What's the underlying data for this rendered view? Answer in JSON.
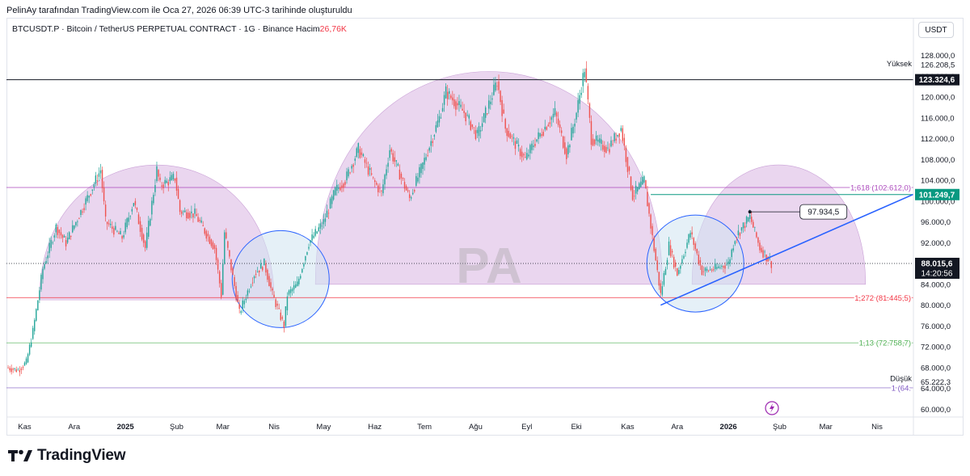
{
  "caption": "PelinAy tarafından TradingView.com ile Oca 27, 2026 06:39 UTC-3 tarihinde oluşturuldu",
  "symbol": {
    "title": "BTCUSDT.P · Bitcoin / TetherUS PERPETUAL CONTRACT · 1G · Binance",
    "volume_label": "Hacim",
    "volume_value": "26,76K"
  },
  "currency_button": "USDT",
  "branding": {
    "logo_text": "TradingView"
  },
  "colors": {
    "up": "#26a69a",
    "down": "#ef5350",
    "fib_purple": "#ab47bc",
    "fib_red": "#f23645",
    "fib_green": "#4caf50",
    "level_green": "#089981",
    "trend_blue": "#2962ff",
    "dome_fill": "#d8b4e2",
    "circle_fill": "#cfe3f0"
  },
  "chart_data": {
    "type": "candlestick",
    "symbol": "BTCUSDT.P",
    "interval": "1G",
    "ylim": [
      58500,
      131500
    ],
    "y_ticks": [
      "128.000,0",
      "124.000,0",
      "120.000,0",
      "116.000,0",
      "112.000,0",
      "108.000,0",
      "104.000,0",
      "100.000,0",
      "96.000,0",
      "92.000,0",
      "88.000,0",
      "84.000,0",
      "80.000,0",
      "76.000,0",
      "72.000,0",
      "68.000,0",
      "64.000,0",
      "60.000,0"
    ],
    "y_tick_values": [
      128000,
      124000,
      120000,
      116000,
      112000,
      108000,
      104000,
      100000,
      96000,
      92000,
      88000,
      84000,
      80000,
      76000,
      72000,
      68000,
      64000,
      60000
    ],
    "x_ticks": [
      "Kas",
      "Ara",
      "2025",
      "Şub",
      "Mar",
      "Nis",
      "May",
      "Haz",
      "Tem",
      "Ağu",
      "Eyl",
      "Eki",
      "Kas",
      "Ara",
      "2026",
      "Şub",
      "Mar",
      "Nis"
    ],
    "x_tick_dates": [
      "2024-11-01",
      "2024-12-01",
      "2025-01-01",
      "2025-02-01",
      "2025-03-01",
      "2025-04-01",
      "2025-05-01",
      "2025-06-01",
      "2025-07-01",
      "2025-08-01",
      "2025-09-01",
      "2025-10-01",
      "2025-11-01",
      "2025-12-01",
      "2026-01-01",
      "2026-02-01",
      "2026-03-01",
      "2026-04-01"
    ],
    "x_tick_bold": [
      "2025",
      "2026"
    ],
    "x_range": [
      "2024-10-21",
      "2026-04-23"
    ],
    "price_path": [
      [
        "2024-10-21",
        68000
      ],
      [
        "2024-10-28",
        67500
      ],
      [
        "2024-11-02",
        69000
      ],
      [
        "2024-11-06",
        75000
      ],
      [
        "2024-11-12",
        87000
      ],
      [
        "2024-11-20",
        95000
      ],
      [
        "2024-11-26",
        92000
      ],
      [
        "2024-12-05",
        98000
      ],
      [
        "2024-12-08",
        100000
      ],
      [
        "2024-12-17",
        106000
      ],
      [
        "2024-12-20",
        96000
      ],
      [
        "2024-12-30",
        93000
      ],
      [
        "2025-01-06",
        100000
      ],
      [
        "2025-01-13",
        91000
      ],
      [
        "2025-01-20",
        106000
      ],
      [
        "2025-01-22",
        103000
      ],
      [
        "2025-01-31",
        104500
      ],
      [
        "2025-02-03",
        98000
      ],
      [
        "2025-02-12",
        97500
      ],
      [
        "2025-02-24",
        91000
      ],
      [
        "2025-02-28",
        82000
      ],
      [
        "2025-03-02",
        94000
      ],
      [
        "2025-03-11",
        78500
      ],
      [
        "2025-03-20",
        86000
      ],
      [
        "2025-03-26",
        88000
      ],
      [
        "2025-03-31",
        82000
      ],
      [
        "2025-04-07",
        76000
      ],
      [
        "2025-04-09",
        82000
      ],
      [
        "2025-04-15",
        84000
      ],
      [
        "2025-04-22",
        92000
      ],
      [
        "2025-05-01",
        96000
      ],
      [
        "2025-05-08",
        102000
      ],
      [
        "2025-05-14",
        104000
      ],
      [
        "2025-05-22",
        110000
      ],
      [
        "2025-05-31",
        104000
      ],
      [
        "2025-06-05",
        101500
      ],
      [
        "2025-06-10",
        110000
      ],
      [
        "2025-06-22",
        100500
      ],
      [
        "2025-06-30",
        107000
      ],
      [
        "2025-07-10",
        116000
      ],
      [
        "2025-07-14",
        121000
      ],
      [
        "2025-07-25",
        117000
      ],
      [
        "2025-08-02",
        112500
      ],
      [
        "2025-08-14",
        123000
      ],
      [
        "2025-08-19",
        114000
      ],
      [
        "2025-08-31",
        108000
      ],
      [
        "2025-09-05",
        111000
      ],
      [
        "2025-09-18",
        117000
      ],
      [
        "2025-09-25",
        109000
      ],
      [
        "2025-10-01",
        117000
      ],
      [
        "2025-10-06",
        125500
      ],
      [
        "2025-10-10",
        112000
      ],
      [
        "2025-10-20",
        110000
      ],
      [
        "2025-10-28",
        114000
      ],
      [
        "2025-11-04",
        101000
      ],
      [
        "2025-11-11",
        104000
      ],
      [
        "2025-11-21",
        82000
      ],
      [
        "2025-11-26",
        91500
      ],
      [
        "2025-12-01",
        86000
      ],
      [
        "2025-12-09",
        94000
      ],
      [
        "2025-12-16",
        86500
      ],
      [
        "2025-12-24",
        87000
      ],
      [
        "2026-01-01",
        88000
      ],
      [
        "2026-01-05",
        93000
      ],
      [
        "2026-01-14",
        97000
      ],
      [
        "2026-01-20",
        91000
      ],
      [
        "2026-01-27",
        88015
      ]
    ],
    "price_lines": [
      {
        "name": "Yüksek",
        "value": 126208.5,
        "axis_label": "126.208,5"
      },
      {
        "name": "Düşük",
        "value": 65222.3,
        "axis_label": "65.222,3"
      },
      {
        "name": "level_black",
        "value": 123324.6,
        "axis_label": "123.324,6"
      },
      {
        "name": "level_green",
        "value": 101249.7,
        "axis_label": "101.249,7"
      },
      {
        "name": "last",
        "value": 88015.6,
        "axis_label": "88.015,6",
        "countdown": "14:20:56"
      }
    ],
    "fib_levels": [
      {
        "value": 102612.0,
        "label": "1,618 (102.612,0)",
        "color": "#ab47bc"
      },
      {
        "value": 81445.5,
        "label": "1,272 (81.445,5)",
        "color": "#f23645"
      },
      {
        "value": 72758.7,
        "label": "1,13 (72.758,7)",
        "color": "#4caf50"
      },
      {
        "value": 64100,
        "label": "1 (64.",
        "color": "#7e57c2"
      }
    ],
    "callout": {
      "label": "97.934,5",
      "date": "2026-01-14",
      "value": 97934.5
    },
    "trendline": {
      "start": [
        "2025-11-21",
        80000
      ],
      "end": [
        "2026-04-23",
        101300
      ]
    },
    "domes": [
      {
        "from": "2024-11-10",
        "to": "2025-04-01",
        "base": 81000,
        "peak": 107000
      },
      {
        "from": "2025-04-26",
        "to": "2025-11-22",
        "base": 84000,
        "peak": 125000
      },
      {
        "from": "2025-12-10",
        "to": "2026-03-25",
        "base": 84000,
        "peak": 107000
      }
    ],
    "circles": [
      {
        "center": [
          "2025-04-05",
          85000
        ]
      },
      {
        "center": [
          "2025-12-12",
          88000
        ]
      }
    ],
    "labels": {
      "high": "Yüksek",
      "low": "Düşük"
    }
  }
}
